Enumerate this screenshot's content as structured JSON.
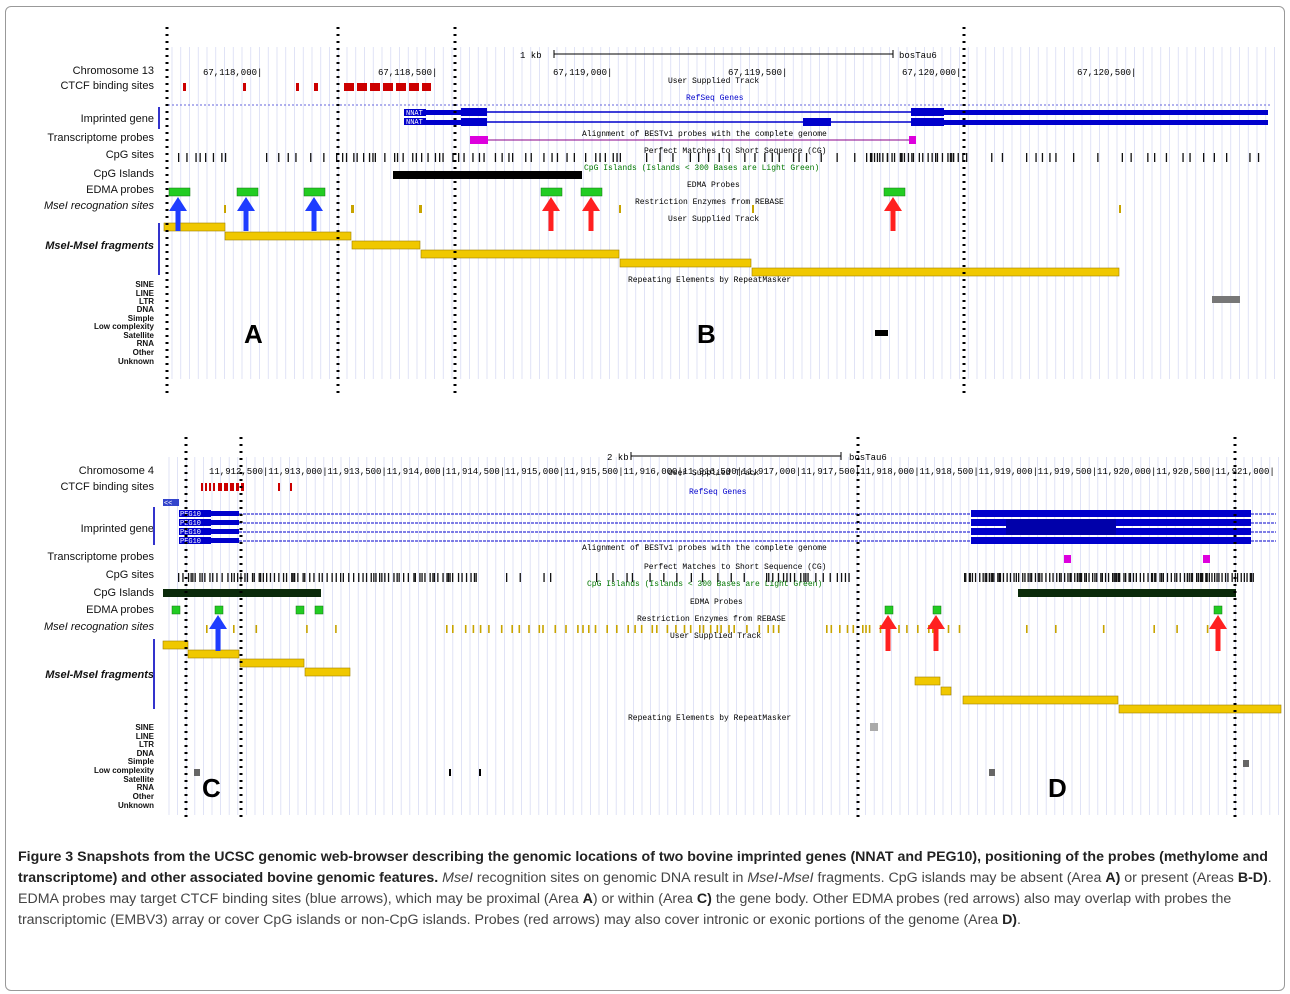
{
  "panels": [
    {
      "chromosome_label": "Chromosome 13",
      "scale_text": "1 kb",
      "assembly": "bosTau6",
      "ticks": [
        "67,118,000|",
        "67,118,500|",
        "67,119,000|",
        "67,119,500|",
        "67,120,000|",
        "67,120,500|"
      ],
      "tracks": [
        "CTCF binding sites",
        "Imprinted gene",
        "Transcriptome probes",
        "CpG sites",
        "CpG Islands",
        "EDMA probes",
        "MseI recognation sites",
        "MseI-MseI fragments"
      ],
      "repeat_classes": [
        "SINE",
        "LINE",
        "LTR",
        "DNA",
        "Simple",
        "Low complexity",
        "Satellite",
        "RNA",
        "Other",
        "Unknown"
      ],
      "track_titles": [
        "User Supplied Track",
        "RefSeq Genes",
        "Alignment of BESTv1 probes with the complete genome",
        "Perfect Matches to Short Sequence (CG)",
        "CpG Islands (Islands < 300 Bases are Light Green)",
        "EDMA Probes",
        "Restriction Enzymes from REBASE",
        "User Supplied Track",
        "Repeating Elements by RepeatMasker"
      ],
      "gene_names": [
        "NNAT",
        "NNAT"
      ],
      "area_labels": [
        "A",
        "B"
      ]
    },
    {
      "chromosome_label": "Chromosome 4",
      "scale_text": "2 kb",
      "assembly": "bosTau6",
      "ticks": [
        "11,912,500|",
        "11,913,000|",
        "11,913,500|",
        "11,914,000|",
        "11,914,500|",
        "11,915,000|",
        "11,915,500|",
        "11,916,000|",
        "11,916,500|",
        "11,917,000|",
        "11,917,500|",
        "11,918,000|",
        "11,918,500|",
        "11,919,000|",
        "11,919,500|",
        "11,920,000|",
        "11,920,500|",
        "11,921,000|"
      ],
      "tracks": [
        "CTCF binding sites",
        "Imprinted gene",
        "Transcriptome probes",
        "CpG sites",
        "CpG Islands",
        "EDMA probes",
        "MseI recognation sites",
        "MseI-MseI fragments"
      ],
      "repeat_classes": [
        "SINE",
        "LINE",
        "LTR",
        "DNA",
        "Simple",
        "Low complexity",
        "Satellite",
        "RNA",
        "Other",
        "Unknown"
      ],
      "track_titles": [
        "User Supplied Track",
        "RefSeq Genes",
        "Alignment of BESTv1 probes with the complete genome",
        "Perfect Matches to Short Sequence (CG)",
        "CpG Islands (Islands < 300 Bases are Light Green)",
        "EDMA Probes",
        "Restriction Enzymes from REBASE",
        "User Supplied Track",
        "Repeating Elements by RepeatMasker"
      ],
      "gene_names": [
        "PEG10",
        "PEG10",
        "PEG10",
        "PEG10"
      ],
      "area_labels": [
        "C",
        "D"
      ]
    }
  ],
  "caption": {
    "title": "Figure 3 Snapshots from the UCSC genomic web-browser describing the genomic locations of two bovine imprinted genes (NNAT and PEG10), positioning of the probes (methylome and transcriptome) and other associated bovine genomic features.",
    "s1a": "MseI",
    "s1b": " recognition sites on genomic DNA result in ",
    "s1c": "MseI-MseI",
    "s1d": " fragments. CpG islands may be absent (Area ",
    "A1": "A)",
    "s2": " or present (Areas ",
    "BD": "B-D)",
    "s3": ". EDMA probes may target CTCF binding sites (blue arrows), which may be proximal (Area ",
    "A2": "A",
    "s4": ") or within (Area ",
    "C": "C)",
    "s5": " the gene body. Other EDMA probes (red arrows) also may overlap with probes the transcriptomic (EMBV3) array or cover CpG islands or non-CpG islands. Probes (red arrows) may also cover intronic or exonic portions of the genome (Area ",
    "D": "D)",
    "s6": "."
  },
  "colors": {
    "gene": "#0000cc",
    "ctcf": "#cc0000",
    "edma": "#22cc22",
    "fragment": "#f0c800",
    "transcriptome": "#dd00dd",
    "blue_arrow": "#1e3cff",
    "red_arrow": "#ff2020"
  }
}
